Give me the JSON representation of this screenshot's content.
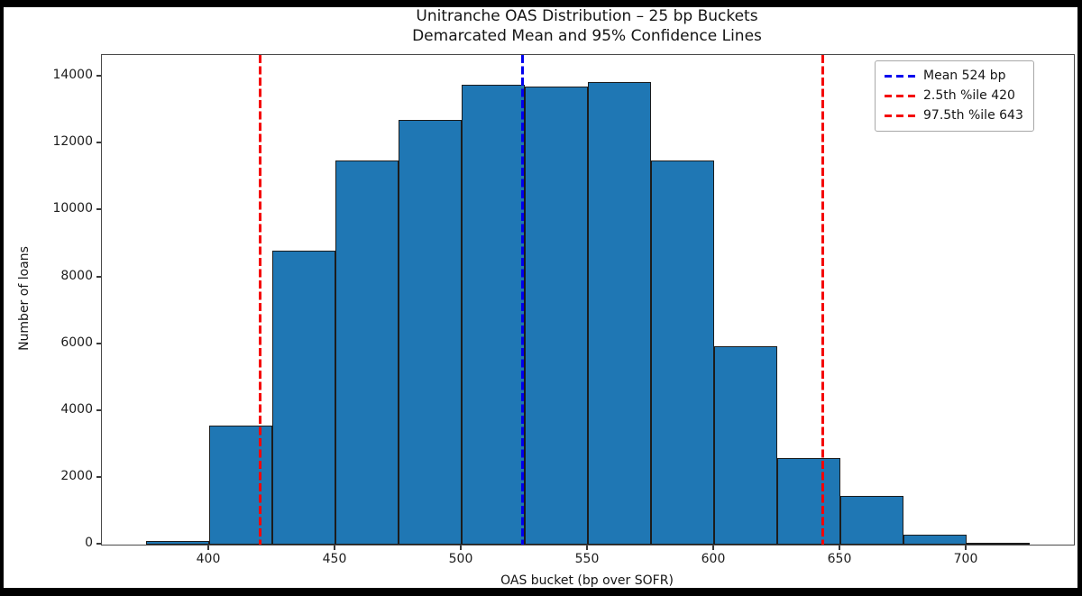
{
  "chart_data": {
    "type": "bar",
    "title_line1": "Unitranche OAS Distribution – 25 bp Buckets",
    "title_line2": "Demarcated Mean and 95% Confidence Lines",
    "xlabel": "OAS bucket (bp over SOFR)",
    "ylabel": "Number of loans",
    "bin_width_bp": 25,
    "bin_edges": [
      375,
      400,
      425,
      450,
      475,
      500,
      525,
      550,
      575,
      600,
      625,
      650,
      675,
      700,
      725
    ],
    "counts": [
      100,
      3550,
      8800,
      11500,
      12700,
      13750,
      13700,
      13850,
      11500,
      5950,
      2600,
      1450,
      300,
      40
    ],
    "xticks": [
      400,
      450,
      500,
      550,
      600,
      650,
      700
    ],
    "yticks": [
      0,
      2000,
      4000,
      6000,
      8000,
      10000,
      12000,
      14000
    ],
    "xlim": [
      357.5,
      742.5
    ],
    "ylim": [
      0,
      14650
    ],
    "grid": false,
    "bar_color": "#1f77b4",
    "bar_edge_color": "#1c1c1c",
    "legend_position": "upper right",
    "vlines": [
      {
        "name": "mean-line",
        "x": 524,
        "color": "#0000ee",
        "style": "dashed",
        "label": "Mean 524 bp"
      },
      {
        "name": "pct-2-5-line",
        "x": 420,
        "color": "#f40000",
        "style": "dashed",
        "label": "2.5th %ile 420"
      },
      {
        "name": "pct-97-5-line",
        "x": 643,
        "color": "#f40000",
        "style": "dashed",
        "label": "97.5th %ile 643"
      }
    ]
  }
}
